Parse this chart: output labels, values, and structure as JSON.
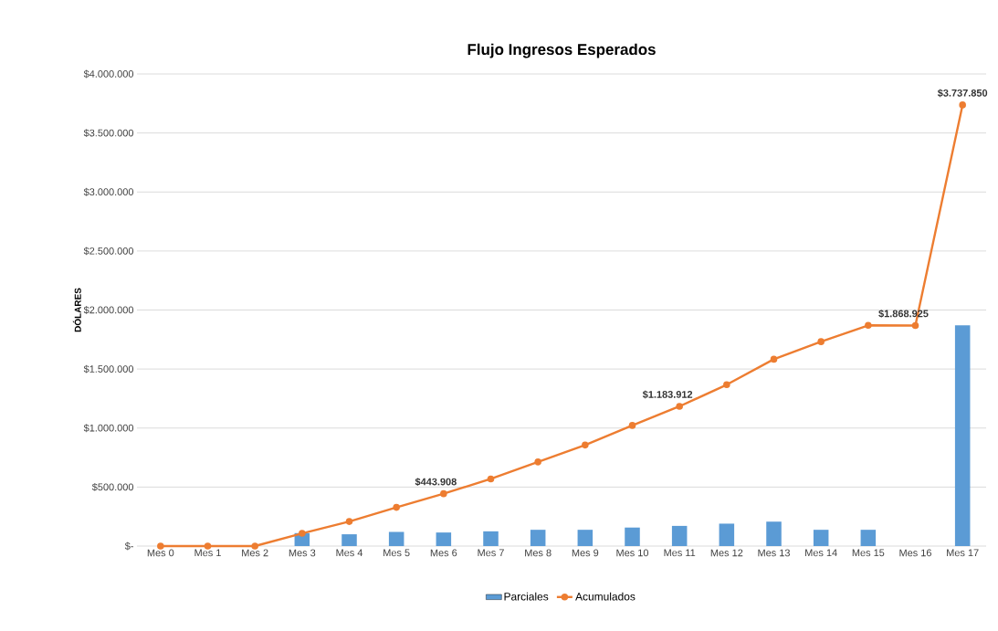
{
  "chart_data": {
    "type": "bar",
    "title": "Flujo Ingresos Esperados",
    "ylabel": "DÓLARES",
    "categories": [
      "Mes 0",
      "Mes 1",
      "Mes 2",
      "Mes 3",
      "Mes 4",
      "Mes 5",
      "Mes 6",
      "Mes 7",
      "Mes 8",
      "Mes 9",
      "Mes 10",
      "Mes 11",
      "Mes 12",
      "Mes 13",
      "Mes 14",
      "Mes 15",
      "Mes 16",
      "Mes 17"
    ],
    "series": [
      {
        "name": "Parciales",
        "color": "#5b9bd5",
        "values": [
          0,
          0,
          0,
          110000,
          100000,
          120000,
          115000,
          125000,
          138000,
          138000,
          157000,
          171000,
          190000,
          207000,
          138000,
          138000,
          0,
          1870000
        ]
      },
      {
        "name": "Acumulados",
        "type": "line",
        "color": "#ed7d31",
        "values": [
          0,
          0,
          0,
          108000,
          208000,
          328000,
          443908,
          569000,
          713000,
          856000,
          1022000,
          1183912,
          1367000,
          1583000,
          1732000,
          1870000,
          1868925,
          3737850
        ],
        "value_labels": [
          null,
          null,
          null,
          null,
          null,
          null,
          "$443.908",
          null,
          null,
          null,
          null,
          "$1.183.912",
          null,
          null,
          null,
          null,
          "$1.868.925",
          "$3.737.850"
        ]
      }
    ],
    "ylim": [
      0,
      4000000
    ],
    "yticks": [
      {
        "value": 0,
        "label": "$-"
      },
      {
        "value": 500000,
        "label": "$500.000"
      },
      {
        "value": 1000000,
        "label": "$1.000.000"
      },
      {
        "value": 1500000,
        "label": "$1.500.000"
      },
      {
        "value": 2000000,
        "label": "$2.000.000"
      },
      {
        "value": 2500000,
        "label": "$2.500.000"
      },
      {
        "value": 3000000,
        "label": "$3.000.000"
      },
      {
        "value": 3500000,
        "label": "$3.500.000"
      },
      {
        "value": 4000000,
        "label": "$4.000.000"
      }
    ],
    "grid": "y",
    "legend": "bottom",
    "marker": "circle"
  }
}
